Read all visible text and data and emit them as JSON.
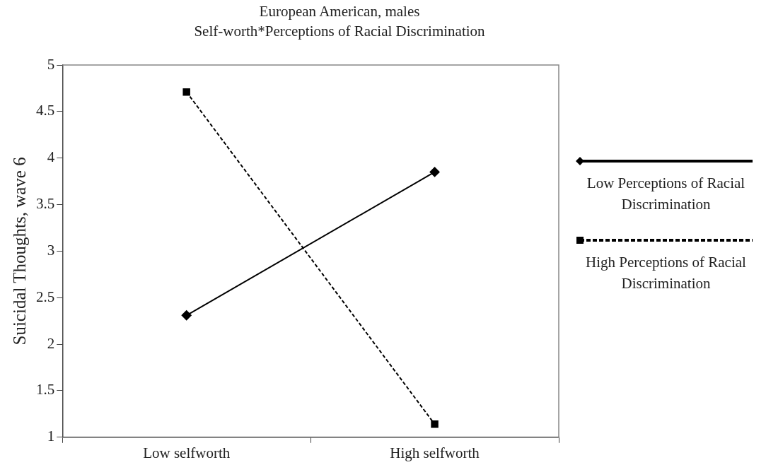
{
  "chart_data": {
    "type": "line",
    "title": "European American, males\nSelf-worth*Perceptions of Racial Discrimination",
    "ylabel": "Suicidal Thoughts, wave 6",
    "categories": [
      "Low selfworth",
      "High selfworth"
    ],
    "series": [
      {
        "name": "Low Perceptions of Racial Discrimination",
        "color": "#000000",
        "values": [
          2.31,
          3.85
        ],
        "marker": "diamond",
        "line_style": "solid"
      },
      {
        "name": "High Perceptions of Racial Discrimination",
        "color": "#000000",
        "values": [
          4.71,
          1.14
        ],
        "marker": "square",
        "line_style": "dashed"
      }
    ],
    "ylim": [
      1,
      5
    ],
    "yticks": [
      1,
      1.5,
      2,
      2.5,
      3,
      3.5,
      4,
      4.5,
      5
    ],
    "grid": false,
    "legend": "right"
  }
}
